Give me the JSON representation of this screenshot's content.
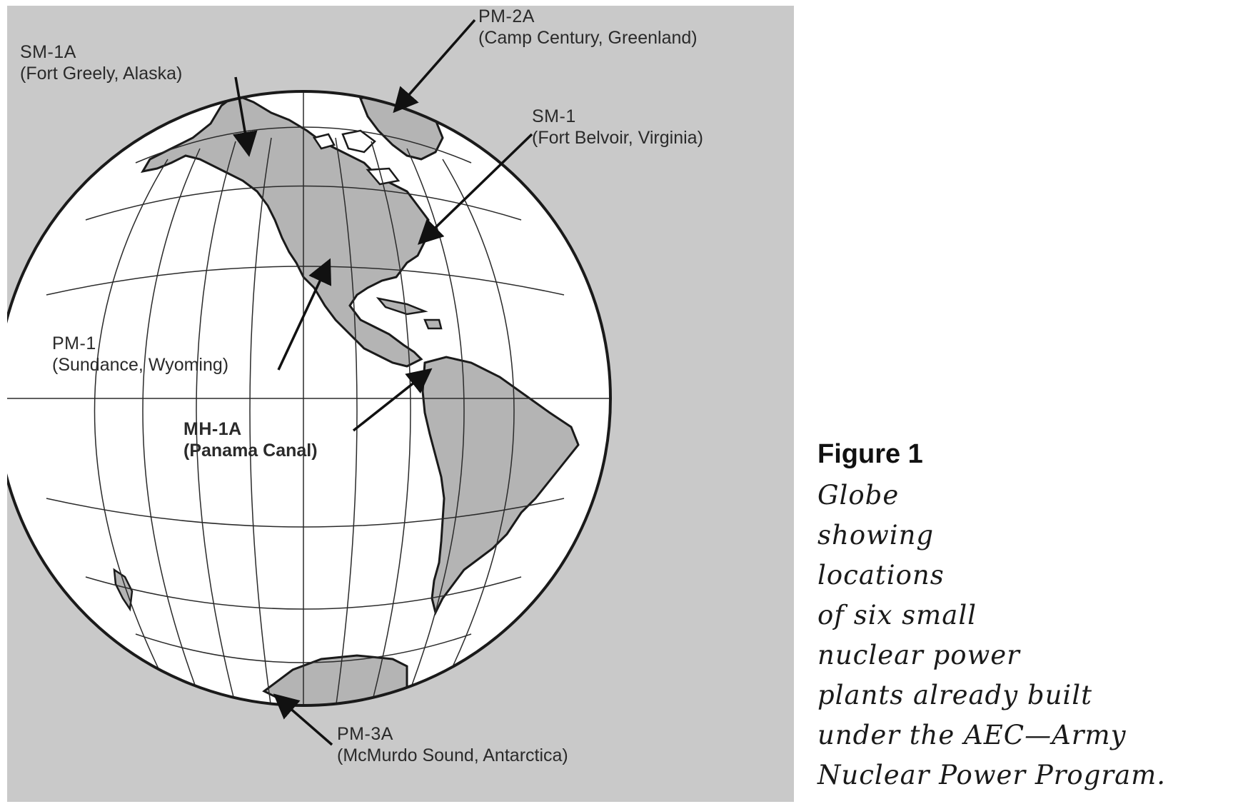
{
  "map": {
    "labels": {
      "pm2a": {
        "code": "PM-2A",
        "place": "(Camp Century, Greenland)"
      },
      "sm1a": {
        "code": "SM-1A",
        "place": "(Fort Greely, Alaska)"
      },
      "sm1": {
        "code": "SM-1",
        "place": "(Fort Belvoir, Virginia)"
      },
      "pm1": {
        "code": "PM-1",
        "place": "(Sundance, Wyoming)"
      },
      "mh1a": {
        "code": "MH-1A",
        "place": "(Panama Canal)"
      },
      "pm3a": {
        "code": "PM-3A",
        "place": "(McMurdo Sound, Antarctica)"
      }
    },
    "colors": {
      "background": "#c9c9c9",
      "ocean": "#ffffff",
      "land": "#b4b4b4",
      "lines": "#2a2a2a"
    }
  },
  "caption": {
    "title": "Figure 1",
    "lines": [
      "Globe",
      "showing",
      "locations",
      "of six small",
      "nuclear power",
      "plants already built",
      "under the AEC—Army",
      "Nuclear Power Program."
    ]
  }
}
